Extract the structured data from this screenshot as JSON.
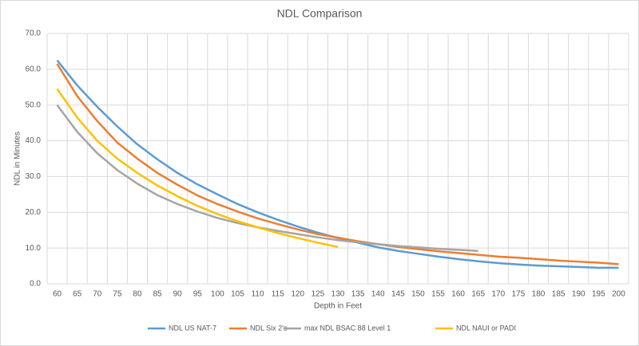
{
  "chart_data": {
    "type": "line",
    "title": "NDL Comparison",
    "x_label": "Depth in Feet",
    "y_label": "NDL in Minutes",
    "categories": [
      60,
      65,
      70,
      75,
      80,
      85,
      90,
      95,
      100,
      105,
      110,
      115,
      120,
      125,
      130,
      135,
      140,
      145,
      150,
      155,
      160,
      165,
      170,
      175,
      180,
      185,
      190,
      195,
      200
    ],
    "series": [
      {
        "name": "NDL US NAT-7",
        "color": "#5b9bd5",
        "values": [
          62.5,
          55.5,
          49.5,
          44,
          39,
          34.8,
          31,
          27.8,
          25,
          22.3,
          20,
          17.9,
          16,
          14.3,
          12.8,
          11.5,
          10.2,
          9.2,
          8.4,
          7.6,
          6.9,
          6.3,
          5.8,
          5.4,
          5.1,
          4.9,
          4.7,
          4.5,
          4.5
        ]
      },
      {
        "name": "NDL Six 2's",
        "color": "#ed7d31",
        "values": [
          61.5,
          52.5,
          45.5,
          39.5,
          35,
          31,
          27.7,
          24.7,
          22.3,
          20.2,
          18.3,
          16.7,
          15.2,
          13.9,
          12.9,
          11.9,
          11.1,
          10.3,
          9.7,
          9.1,
          8.6,
          8.1,
          7.6,
          7.3,
          6.9,
          6.5,
          6.2,
          5.9,
          5.5
        ]
      },
      {
        "name": "max NDL BSAC 88  Level 1",
        "color": "#a5a5a5",
        "values": [
          50,
          42.5,
          36.5,
          31.8,
          28,
          24.8,
          22.3,
          20.2,
          18.4,
          17,
          15.8,
          14.8,
          13.9,
          13,
          12.2,
          11.6,
          11.1,
          10.6,
          10.2,
          9.8,
          9.5,
          9.2,
          null,
          null,
          null,
          null,
          null,
          null,
          null
        ]
      },
      {
        "name": "NDL NAUI or PADI",
        "color": "#ffc000",
        "values": [
          54.5,
          46.5,
          40,
          35,
          31,
          27.5,
          24.5,
          21.8,
          19.5,
          17.5,
          15.8,
          14.2,
          12.8,
          11.5,
          10.3,
          null,
          null,
          null,
          null,
          null,
          null,
          null,
          null,
          null,
          null,
          null,
          null,
          null,
          null
        ]
      }
    ],
    "ylim": [
      0,
      70
    ],
    "yticks": [
      {
        "value": 0,
        "label": "0.0"
      },
      {
        "value": 10,
        "label": "10.0"
      },
      {
        "value": 20,
        "label": "20.0"
      },
      {
        "value": 30,
        "label": "30.0"
      },
      {
        "value": 40,
        "label": "40.0"
      },
      {
        "value": 50,
        "label": "50.0"
      },
      {
        "value": 60,
        "label": "60.0"
      },
      {
        "value": 70,
        "label": "70.0"
      }
    ],
    "grid": true,
    "legend": "bottom"
  }
}
